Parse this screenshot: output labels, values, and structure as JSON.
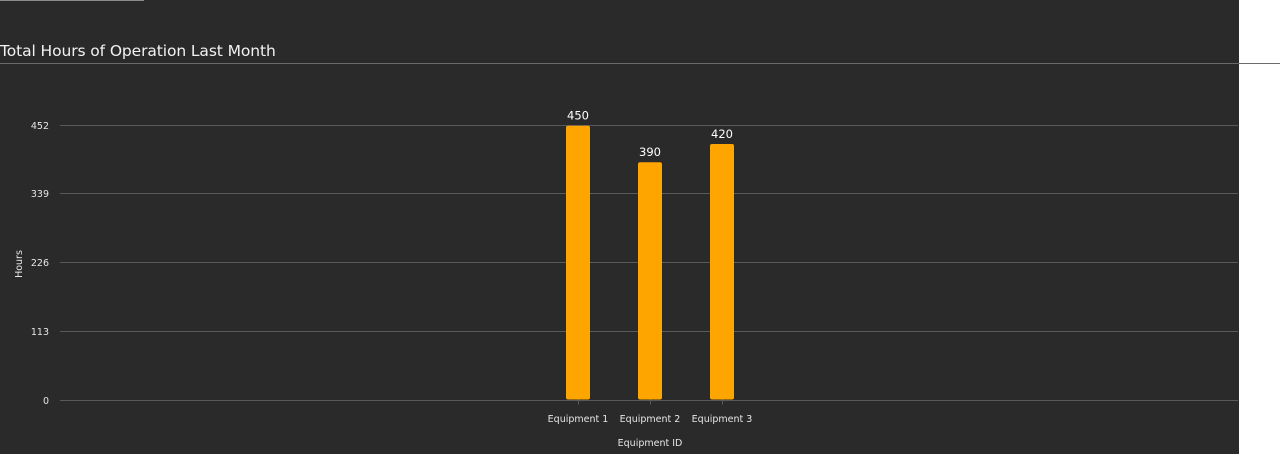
{
  "chart_data": {
    "type": "bar",
    "title": "Total Hours of Operation Last Month",
    "xlabel": "Equipment ID",
    "ylabel": "Hours",
    "categories": [
      "Equipment 1",
      "Equipment 2",
      "Equipment 3"
    ],
    "values": [
      450,
      390,
      420
    ],
    "ylim": [
      0,
      452
    ],
    "yticks": [
      0,
      113,
      226,
      339,
      452
    ],
    "grid": true,
    "legend": "none",
    "bar_color": "#ffa500",
    "background_color": "#2a2a2a"
  }
}
